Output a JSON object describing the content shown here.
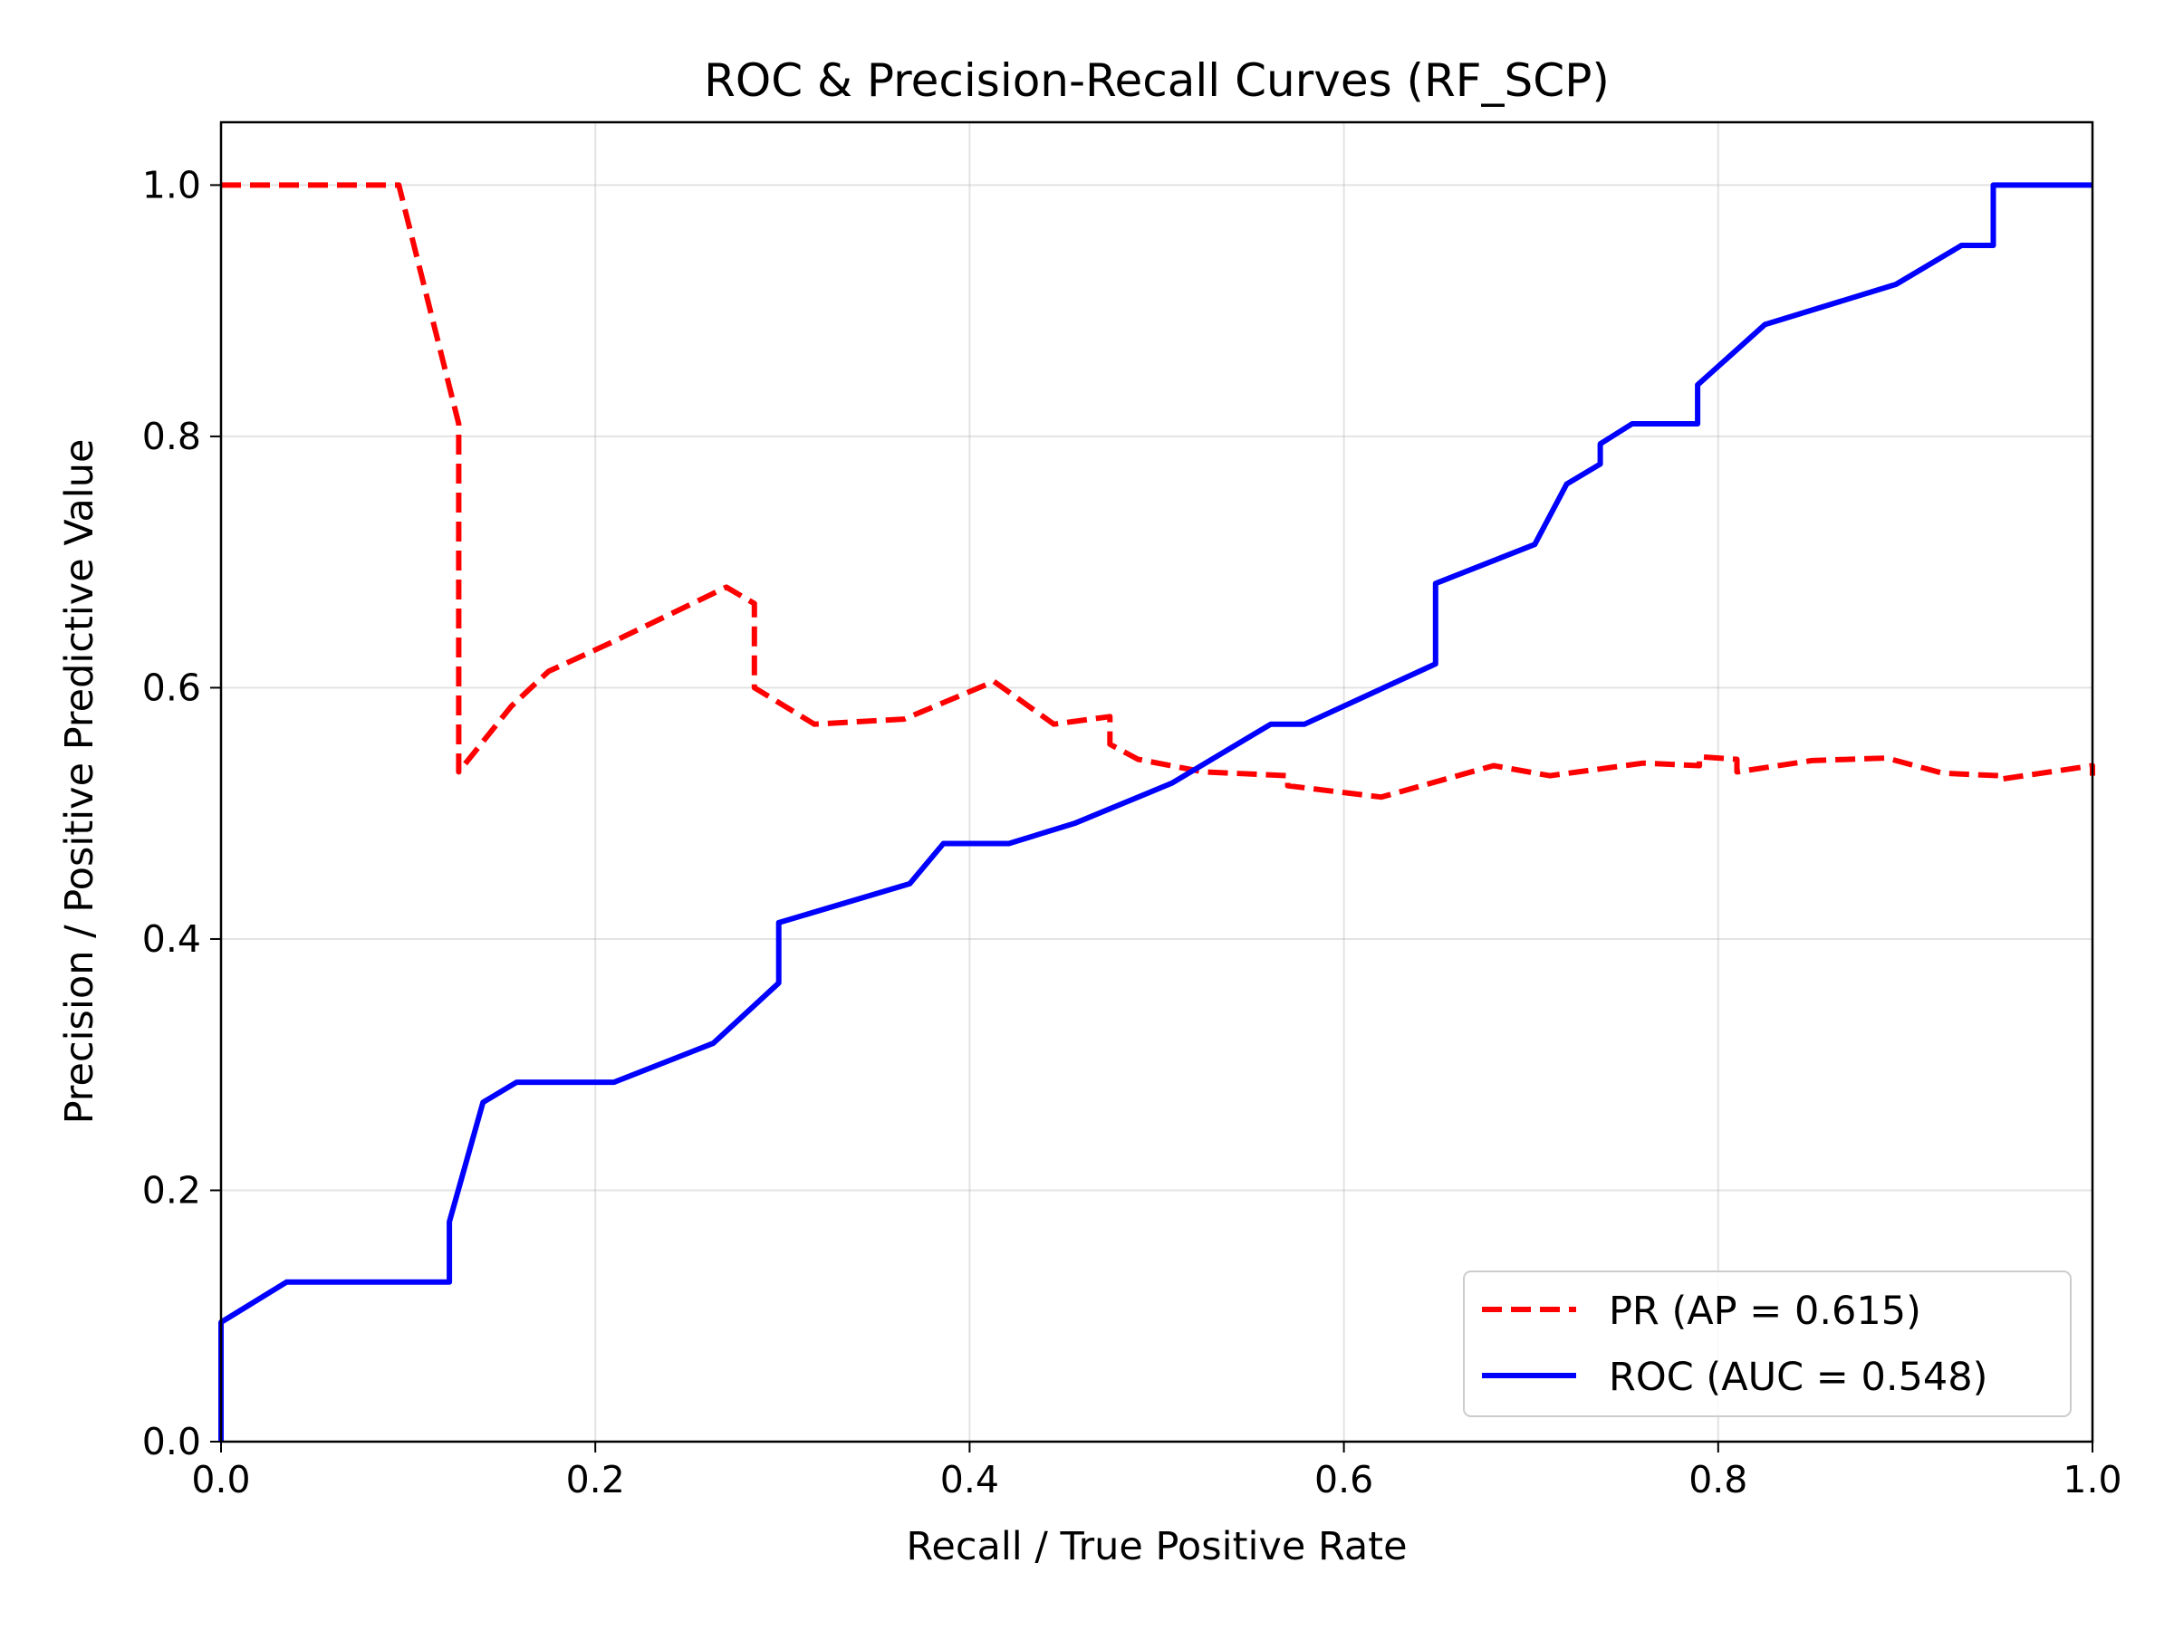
{
  "chart_data": {
    "type": "line",
    "title": "ROC & Precision-Recall Curves (RF_SCP)",
    "xlabel": "Recall / True Positive Rate",
    "ylabel": "Precision / Positive Predictive Value",
    "xlim": [
      0.0,
      1.0
    ],
    "ylim": [
      0.0,
      1.05
    ],
    "xticks": [
      "0.0",
      "0.2",
      "0.4",
      "0.6",
      "0.8",
      "1.0"
    ],
    "yticks": [
      "0.0",
      "0.2",
      "0.4",
      "0.6",
      "0.8",
      "1.0"
    ],
    "grid": true,
    "legend_position": "lower-right",
    "series": [
      {
        "name": "PR (AP = 0.615)",
        "color": "#ff0000",
        "style": "dashed",
        "points": [
          [
            0.0,
            1.0
          ],
          [
            0.095,
            1.0
          ],
          [
            0.127,
            0.81
          ],
          [
            0.127,
            0.533
          ],
          [
            0.155,
            0.585
          ],
          [
            0.175,
            0.613
          ],
          [
            0.21,
            0.637
          ],
          [
            0.27,
            0.68
          ],
          [
            0.285,
            0.667
          ],
          [
            0.285,
            0.6
          ],
          [
            0.317,
            0.571
          ],
          [
            0.365,
            0.575
          ],
          [
            0.413,
            0.605
          ],
          [
            0.445,
            0.571
          ],
          [
            0.475,
            0.577
          ],
          [
            0.475,
            0.555
          ],
          [
            0.49,
            0.543
          ],
          [
            0.525,
            0.533
          ],
          [
            0.57,
            0.53
          ],
          [
            0.57,
            0.522
          ],
          [
            0.62,
            0.513
          ],
          [
            0.68,
            0.538
          ],
          [
            0.71,
            0.53
          ],
          [
            0.76,
            0.54
          ],
          [
            0.79,
            0.538
          ],
          [
            0.79,
            0.545
          ],
          [
            0.81,
            0.543
          ],
          [
            0.81,
            0.533
          ],
          [
            0.85,
            0.542
          ],
          [
            0.89,
            0.544
          ],
          [
            0.92,
            0.532
          ],
          [
            0.95,
            0.53
          ],
          [
            0.95,
            0.527
          ],
          [
            1.0,
            0.538
          ],
          [
            1.0,
            0.53
          ]
        ]
      },
      {
        "name": "ROC (AUC = 0.548)",
        "color": "#0000ff",
        "style": "solid",
        "points": [
          [
            0.0,
            0.0
          ],
          [
            0.0,
            0.095
          ],
          [
            0.035,
            0.127
          ],
          [
            0.122,
            0.127
          ],
          [
            0.122,
            0.175
          ],
          [
            0.14,
            0.27
          ],
          [
            0.158,
            0.286
          ],
          [
            0.21,
            0.286
          ],
          [
            0.263,
            0.317
          ],
          [
            0.298,
            0.365
          ],
          [
            0.298,
            0.413
          ],
          [
            0.368,
            0.444
          ],
          [
            0.386,
            0.476
          ],
          [
            0.421,
            0.476
          ],
          [
            0.456,
            0.492
          ],
          [
            0.508,
            0.524
          ],
          [
            0.561,
            0.571
          ],
          [
            0.579,
            0.571
          ],
          [
            0.649,
            0.619
          ],
          [
            0.649,
            0.683
          ],
          [
            0.702,
            0.714
          ],
          [
            0.719,
            0.762
          ],
          [
            0.737,
            0.778
          ],
          [
            0.737,
            0.794
          ],
          [
            0.754,
            0.81
          ],
          [
            0.789,
            0.81
          ],
          [
            0.789,
            0.841
          ],
          [
            0.825,
            0.889
          ],
          [
            0.895,
            0.921
          ],
          [
            0.93,
            0.952
          ],
          [
            0.947,
            0.952
          ],
          [
            0.947,
            1.0
          ],
          [
            1.0,
            1.0
          ]
        ]
      }
    ]
  }
}
